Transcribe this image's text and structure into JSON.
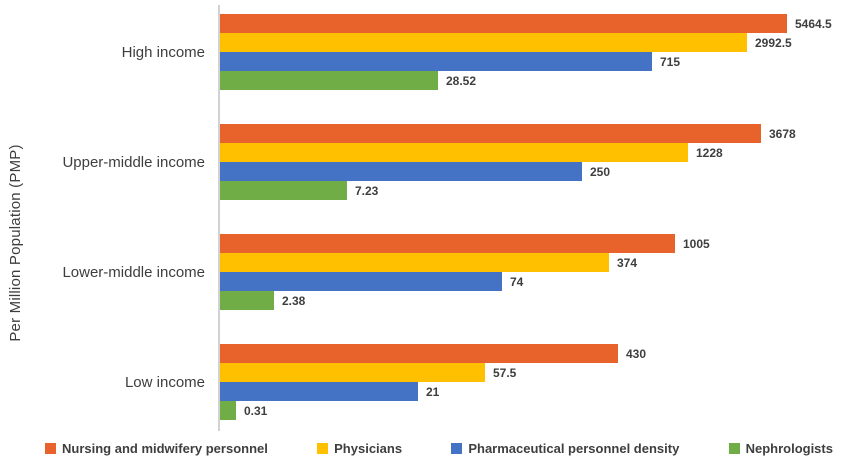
{
  "chart_data": {
    "type": "bar",
    "orientation": "horizontal",
    "title": "",
    "xlabel": "",
    "ylabel": "Per Million Population (PMP)",
    "x_scale": "log",
    "x_range_approx": [
      1.06,
      5800
    ],
    "grid": false,
    "data_labels": true,
    "legend_position": "bottom",
    "axis_color": "#d2d2d2",
    "text_color": "#3e3e3e",
    "categories": [
      "High income",
      "Upper-middle income",
      "Lower-middle income",
      "Low income"
    ],
    "series": [
      {
        "name": "Nursing and midwifery personnel",
        "color": "#e8622c",
        "values": [
          5464.5,
          3678,
          1005,
          430
        ]
      },
      {
        "name": "Physicians",
        "color": "#ffc000",
        "values": [
          2992.5,
          1228,
          374,
          57.5
        ]
      },
      {
        "name": "Pharmaceutical personnel density",
        "color": "#4472c4",
        "values": [
          715,
          250,
          74,
          21
        ]
      },
      {
        "name": "Nephrologists",
        "color": "#70ad47",
        "values": [
          28.52,
          7.23,
          2.38,
          0.31
        ]
      }
    ]
  }
}
